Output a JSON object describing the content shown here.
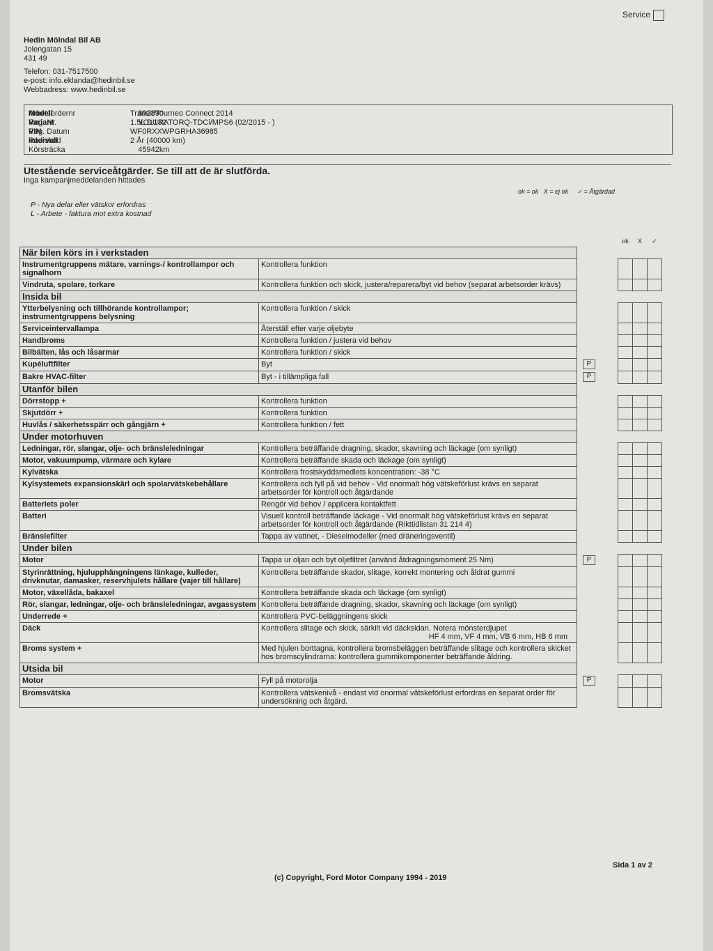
{
  "header": {
    "service_label": "Service",
    "dealer": {
      "name": "Hedin Mölndal Bil AB",
      "street": "Jolengatan 15",
      "postal": "431 49",
      "phone": "Telefon: 031-7517500",
      "email": "e-post: info.eklanda@hedinbil.se",
      "web": "Webbadress: www.hedinbil.se"
    }
  },
  "vehicle": {
    "rows": [
      [
        "Modell",
        "Transit/Tourneo Connect 2014"
      ],
      [
        "Variant",
        "1.5L DURATORQ-TDCi/MPS6 (02/2015 - )"
      ],
      [
        "VIN",
        "WF0RXXWPGRHA36985"
      ],
      [
        "Intervall",
        "2 År (40000 km)"
      ]
    ],
    "order": [
      {
        "label": "Arbetsordernr",
        "value": "892890"
      },
      {
        "label": "Reg. Nr.",
        "value": "YOL132"
      },
      {
        "label": "Reg. Datum"
      },
      {
        "label": "Radiokod"
      },
      {
        "label": "Körsträcka",
        "value": "45942km"
      }
    ]
  },
  "notice": {
    "title": "Utestående serviceåtgärder. Se till att de är slutförda.",
    "subtitle": "Inga kampanjmeddelanden hittades"
  },
  "legend": {
    "p": "P - Nya delar eller vätskor erfordras",
    "l": "L - Arbete - faktura mot extra kostnad",
    "ok": "ok = ok",
    "x": "X = ej ok",
    "done": "✓ = Åtgärdad",
    "columns": [
      "ok",
      "X",
      "✓"
    ]
  },
  "sections": [
    {
      "title": "När bilen körs in i verkstaden",
      "items": [
        {
          "label": "Instrumentgruppens mätare, varnings-/ kontrollampor och signalhorn",
          "action": "Kontrollera funktion"
        },
        {
          "label": "Vindruta, spolare, torkare",
          "action": "Kontrollera funktion och skick, justera/reparera/byt vid behov (separat arbetsorder krävs)"
        }
      ]
    },
    {
      "title": "Insida bil",
      "items": [
        {
          "label": "Ytterbelysning och tillhörande kontrollampor; instrumentgruppens belysning",
          "action": "Kontrollera funktion / skick"
        },
        {
          "label": "Serviceintervallampa",
          "action": "Återställ efter varje oljebyte"
        },
        {
          "label": "Handbroms",
          "action": "Kontrollera funktion / justera vid behov"
        },
        {
          "label": "Bilbälten, lås och låsarmar",
          "action": "Kontrollera funktion / skick"
        },
        {
          "label": "Kupéluftfilter",
          "action": "Byt",
          "flag": "P"
        },
        {
          "label": "Bakre HVAC-filter",
          "action": "Byt - i tillämpliga fall",
          "flag": "P"
        }
      ]
    },
    {
      "title": "Utanför bilen",
      "items": [
        {
          "label": "Dörrstopp +",
          "action": "Kontrollera funktion"
        },
        {
          "label": "Skjutdörr +",
          "action": "Kontrollera funktion"
        },
        {
          "label": "Huvlås / säkerhetsspärr och gångjärn +",
          "action": "Kontrollera funktion / fett"
        }
      ]
    },
    {
      "title": "Under motorhuven",
      "items": [
        {
          "label": "Ledningar, rör, slangar, olje- och bränsleledningar",
          "action": "Kontrollera beträffande dragning, skador, skavning och läckage (om synligt)"
        },
        {
          "label": "Motor, vakuumpump, värmare och kylare",
          "action": "Kontrollera beträffande skada och läckage (om synligt)"
        },
        {
          "label": "Kylvätska",
          "action": "Kontrollera frostskyddsmedlets koncentration: -38 °C"
        },
        {
          "label": "Kylsystemets expansionskärl och spolarvätskebehållare",
          "action": "Kontrollera och fyll på vid behov - Vid onormalt hög vätskeförlust krävs en separat arbetsorder för kontroll och åtgärdande"
        },
        {
          "label": "Batteriets poler",
          "action": "Rengör vid behov / applicera kontaktfett"
        },
        {
          "label": "Batteri",
          "action": "Visuell kontroll beträffande läckage - Vid onormalt hög vätskeförlust krävs en separat arbetsorder för kontroll och åtgärdande (Rikttidlistan 31 214 4)"
        },
        {
          "label": "Bränslefilter",
          "action": "Tappa av vattnet, - Dieselmodeller (med dräneringsventil)"
        }
      ]
    },
    {
      "title": "Under bilen",
      "items": [
        {
          "label": "Motor",
          "action": "Tappa ur oljan och byt oljefiltret (använd åtdragningsmoment 25 Nm)",
          "flag": "P"
        },
        {
          "label": "Styrinrättning, hjulupphängningens länkage, kulleder, drivknutar, damasker, reservhjulets hållare (vajer till hållare)",
          "action": "Kontrollera beträffande skador, slitage, korrekt montering och åldrat gummi"
        },
        {
          "label": "Motor, växellåda, bakaxel",
          "action": "Kontrollera beträffande skada och läckage (om synligt)"
        },
        {
          "label": "Rör, slangar, ledningar, olje- och bränsleledningar, avgassystem",
          "action": "Kontrollera beträffande dragning, skador, skavning och läckage (om synligt)"
        },
        {
          "label": "Underrede +",
          "action": "Kontrollera PVC-beläggningens skick"
        },
        {
          "label": "Däck",
          "action": "Kontrollera slitage och skick, särkilt vid däcksidan. Notera mönsterdjupet",
          "detail": "HF 4 mm, VF 4 mm, VB 6 mm, HB 6 mm"
        },
        {
          "label": "Broms system +",
          "action": "Med hjulen borttagna, kontrollera bromsbeläggen beträffande slitage och kontrollera skicket hos bromscylindrarna: kontrollera gummikomponenter beträffande åldring."
        }
      ]
    },
    {
      "title": "Utsida bil",
      "items": [
        {
          "label": "Motor",
          "action": "Fyll på motorolja",
          "flag": "P"
        },
        {
          "label": "Bromsvätska",
          "action": "Kontrollera vätskenivå - endast vid onormal vätskeförlust erfordras en separat order för undersökning och åtgärd."
        }
      ]
    }
  ],
  "footer": {
    "page": "Sida 1 av 2",
    "copyright": "(c) Copyright, Ford Motor Company 1994 - 2019"
  }
}
